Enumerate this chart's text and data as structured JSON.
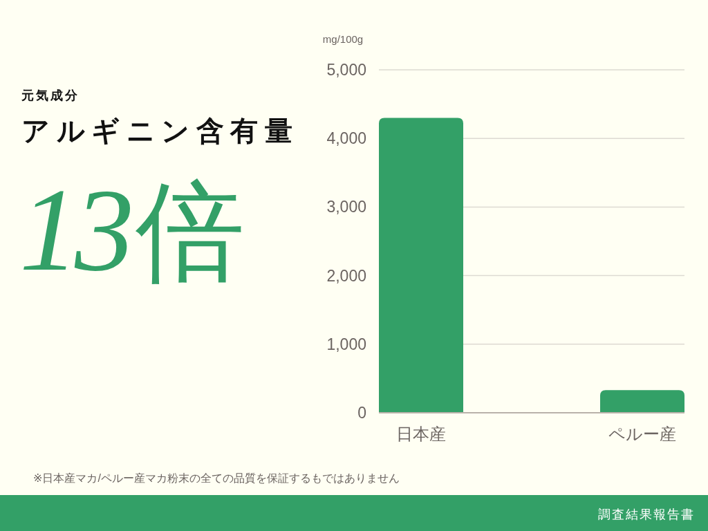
{
  "chart_data": {
    "type": "bar",
    "subtitle": "元気成分",
    "title": "アルギニン含有量",
    "ylabel": "mg/100g",
    "categories": [
      "日本産",
      "ペルー産"
    ],
    "values": [
      4300,
      330
    ],
    "color": "#33a067",
    "ylim": [
      0,
      5000
    ],
    "yticks": [
      0,
      {
        "value": 1000,
        "label": "1,000"
      },
      {
        "value": 2000,
        "label": "2,000"
      },
      {
        "value": 3000,
        "label": "3,000"
      },
      {
        "value": 4000,
        "label": "4,000"
      },
      {
        "value": 5000,
        "label": "5,000"
      }
    ],
    "grid": "y",
    "annotations": [
      "13倍",
      "※日本産マカ/ペルー産マカ粉末の全ての品質を保証するもではありません",
      "調査結果報告書"
    ]
  }
}
